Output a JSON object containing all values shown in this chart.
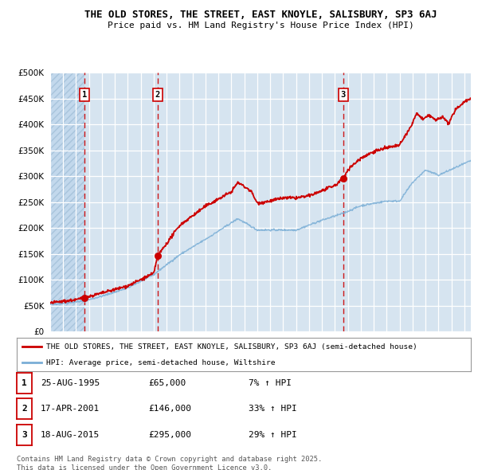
{
  "title_line1": "THE OLD STORES, THE STREET, EAST KNOYLE, SALISBURY, SP3 6AJ",
  "title_line2": "Price paid vs. HM Land Registry's House Price Index (HPI)",
  "background_color": "#d6e4f0",
  "grid_color": "#ffffff",
  "ylim": [
    0,
    500000
  ],
  "yticks": [
    0,
    50000,
    100000,
    150000,
    200000,
    250000,
    300000,
    350000,
    400000,
    450000,
    500000
  ],
  "purchases": [
    {
      "date_label": "25-AUG-1995",
      "date_x": 1995.647,
      "price": 65000,
      "hpi_pct": "7%",
      "label": "1"
    },
    {
      "date_label": "17-APR-2001",
      "date_x": 2001.292,
      "price": 146000,
      "hpi_pct": "33%",
      "label": "2"
    },
    {
      "date_label": "18-AUG-2015",
      "date_x": 2015.631,
      "price": 295000,
      "hpi_pct": "29%",
      "label": "3"
    }
  ],
  "red_line_color": "#cc0000",
  "blue_line_color": "#7aaed6",
  "marker_color": "#cc0000",
  "dashed_line_color": "#cc0000",
  "legend_label_red": "THE OLD STORES, THE STREET, EAST KNOYLE, SALISBURY, SP3 6AJ (semi-detached house)",
  "legend_label_blue": "HPI: Average price, semi-detached house, Wiltshire",
  "table_rows": [
    {
      "num": "1",
      "date": "25-AUG-1995",
      "price": "£65,000",
      "hpi": "7% ↑ HPI"
    },
    {
      "num": "2",
      "date": "17-APR-2001",
      "price": "£146,000",
      "hpi": "33% ↑ HPI"
    },
    {
      "num": "3",
      "date": "18-AUG-2015",
      "price": "£295,000",
      "hpi": "29% ↑ HPI"
    }
  ],
  "footnote": "Contains HM Land Registry data © Crown copyright and database right 2025.\nThis data is licensed under the Open Government Licence v3.0.",
  "xmin": 1993.0,
  "xmax": 2025.5,
  "hpi_key_years": [
    1993,
    1995.0,
    1995.647,
    1997,
    1999,
    2001,
    2003,
    2005,
    2007.5,
    2009,
    2010,
    2012,
    2014,
    2015.6,
    2017,
    2019,
    2020,
    2021,
    2022,
    2023,
    2025.5
  ],
  "hpi_key_vals": [
    52000,
    57000,
    59000,
    68000,
    84000,
    110000,
    148000,
    178000,
    218000,
    196000,
    196000,
    196000,
    215000,
    228000,
    243000,
    252000,
    252000,
    288000,
    312000,
    302000,
    330000
  ],
  "red_key_years": [
    1993,
    1995.0,
    1995.647,
    1997,
    1999,
    2001.0,
    2001.292,
    2002,
    2003,
    2005,
    2007.0,
    2007.5,
    2008.5,
    2009,
    2010,
    2011,
    2012,
    2013,
    2014,
    2015.0,
    2015.631,
    2016,
    2017,
    2018,
    2019,
    2020,
    2021.0,
    2021.3,
    2021.8,
    2022.3,
    2022.8,
    2023.3,
    2023.8,
    2024.3,
    2025.0,
    2025.5
  ],
  "red_key_vals": [
    55000,
    61000,
    65000,
    74000,
    88000,
    112000,
    146000,
    170000,
    205000,
    242000,
    270000,
    288000,
    272000,
    248000,
    252000,
    258000,
    258000,
    262000,
    272000,
    282000,
    295000,
    313000,
    335000,
    348000,
    355000,
    360000,
    402000,
    422000,
    410000,
    418000,
    408000,
    415000,
    402000,
    428000,
    445000,
    450000
  ]
}
